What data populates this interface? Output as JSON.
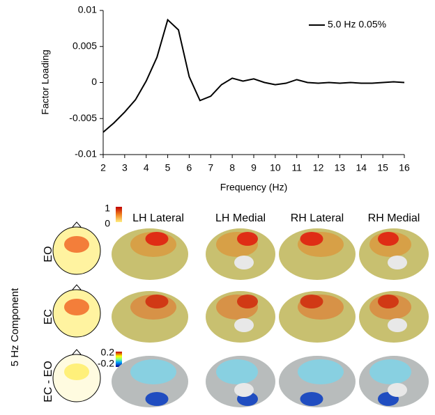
{
  "chart_data": {
    "type": "line",
    "x": [
      2,
      2.5,
      3,
      3.5,
      4,
      4.5,
      5,
      5.5,
      6,
      6.5,
      7,
      7.5,
      8,
      8.5,
      9,
      9.5,
      10,
      10.5,
      11,
      11.5,
      12,
      12.5,
      13,
      13.5,
      14,
      14.5,
      15,
      15.5,
      16
    ],
    "series": [
      {
        "name": "5.0 Hz 0.05%",
        "color": "#000000",
        "values": [
          -0.0069,
          -0.0056,
          -0.0041,
          -0.0024,
          0.0002,
          0.0035,
          0.0087,
          0.0073,
          0.0008,
          -0.0025,
          -0.0019,
          -0.0003,
          0.0006,
          0.0002,
          0.0005,
          0,
          -0.0003,
          -0.0001,
          0.0004,
          0,
          -0.0001,
          0,
          -0.0001,
          0,
          -0.0001,
          -0.0001,
          0,
          0.0001,
          0
        ]
      }
    ],
    "xlabel": "Frequency (Hz)",
    "ylabel": "Factor Loading",
    "xlim": [
      2,
      16
    ],
    "xticks": [
      2,
      3,
      4,
      5,
      6,
      7,
      8,
      9,
      10,
      11,
      12,
      13,
      14,
      15,
      16
    ],
    "ylim": [
      -0.01,
      0.01
    ],
    "yticks": [
      -0.01,
      -0.005,
      0,
      0.005,
      0.01
    ],
    "grid": false,
    "legend": "upper right"
  },
  "panels": {
    "side_label": "5 Hz Component",
    "columns": [
      "LH Lateral",
      "LH Medial",
      "RH Lateral",
      "RH Medial"
    ],
    "rows": [
      "EO",
      "EC",
      "EC - EO"
    ],
    "colorbar_power": {
      "max": 1,
      "min": 0
    },
    "colorbar_diff": {
      "max": 0.2,
      "min": -0.2
    }
  }
}
